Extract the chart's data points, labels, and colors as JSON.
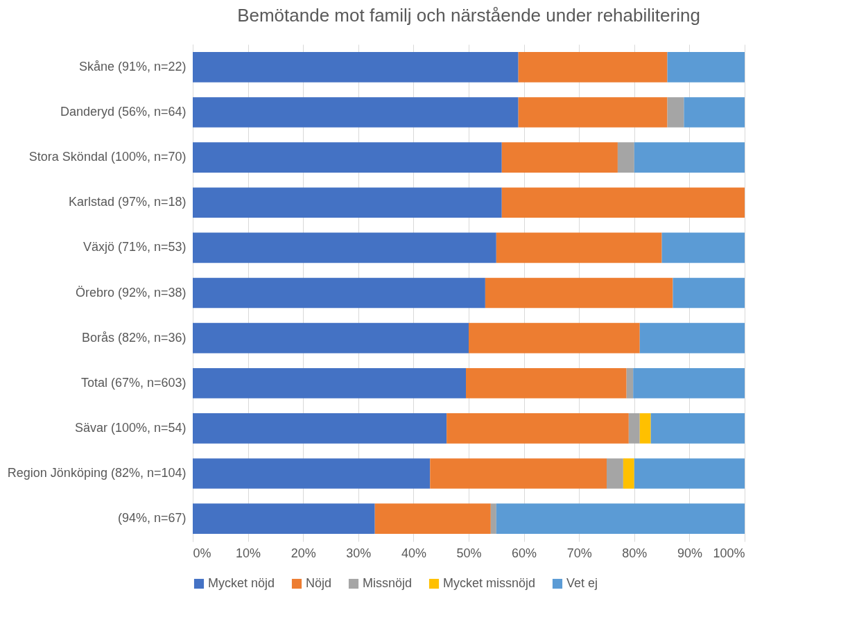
{
  "chart_data": {
    "type": "bar",
    "orientation": "horizontal",
    "stacked": true,
    "title": "Bemötande mot familj och närstående under rehabilitering",
    "categories": [
      "Skåne (91%, n=22)",
      "Danderyd (56%, n=64)",
      "Stora Sköndal (100%, n=70)",
      "Karlstad (97%, n=18)",
      "Växjö (71%, n=53)",
      "Örebro (92%, n=38)",
      "Borås (82%, n=36)",
      "Total (67%, n=603)",
      "Sävar (100%, n=54)",
      "Region Jönköping (82%, n=104)",
      "(94%, n=67)"
    ],
    "series": [
      {
        "name": "Mycket nöjd",
        "color": "#4472c4",
        "values": [
          59,
          59,
          56,
          56,
          55,
          53,
          50,
          49.5,
          46,
          43,
          33
        ]
      },
      {
        "name": "Nöjd",
        "color": "#ed7d31",
        "values": [
          27,
          27,
          21,
          44,
          30,
          34,
          31,
          29.1,
          33,
          32,
          21
        ]
      },
      {
        "name": "Missnöjd",
        "color": "#a5a5a5",
        "values": [
          0,
          3,
          3,
          0,
          0,
          0,
          0,
          1.2,
          2,
          3,
          1
        ]
      },
      {
        "name": "Mycket missnöjd",
        "color": "#ffc000",
        "values": [
          0,
          0,
          0,
          0,
          0,
          0,
          0,
          0,
          2,
          2,
          0
        ]
      },
      {
        "name": "Vet ej",
        "color": "#5b9bd5",
        "values": [
          14,
          11,
          20,
          0,
          15,
          13,
          19,
          20.2,
          17,
          20,
          45
        ]
      }
    ],
    "xlim": [
      0,
      100
    ],
    "xticks": [
      {
        "value": 0,
        "label": "0%"
      },
      {
        "value": 10,
        "label": "10%"
      },
      {
        "value": 20,
        "label": "20%"
      },
      {
        "value": 30,
        "label": "30%"
      },
      {
        "value": 40,
        "label": "40%"
      },
      {
        "value": 50,
        "label": "50%"
      },
      {
        "value": 60,
        "label": "60%"
      },
      {
        "value": 70,
        "label": "70%"
      },
      {
        "value": 80,
        "label": "80%"
      },
      {
        "value": 90,
        "label": "90%"
      },
      {
        "value": 100,
        "label": "100%"
      }
    ],
    "grid": "x",
    "legend": "bottom"
  }
}
